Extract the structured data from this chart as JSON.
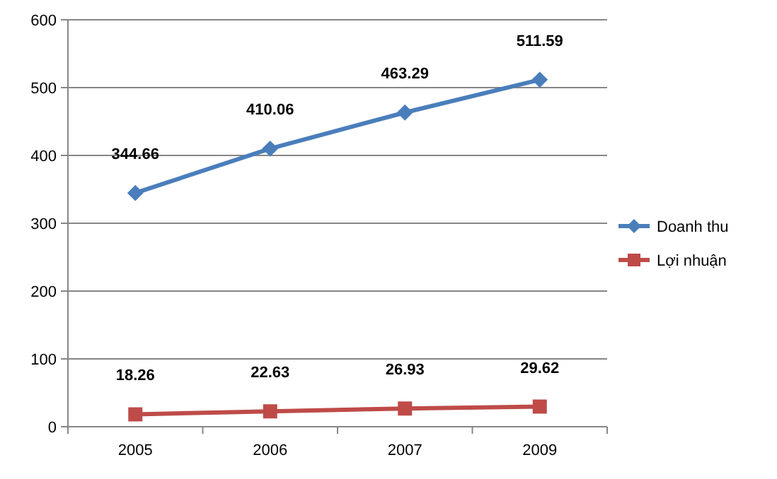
{
  "chart_data": {
    "type": "line",
    "categories": [
      "2005",
      "2006",
      "2007",
      "2009"
    ],
    "series": [
      {
        "name": "Doanh thu",
        "color": "#4a7ebb",
        "marker": "diamond",
        "values": [
          344.66,
          410.06,
          463.29,
          511.59
        ]
      },
      {
        "name": "Lợi nhuận",
        "color": "#be4b48",
        "marker": "square",
        "values": [
          18.26,
          22.63,
          26.93,
          29.62
        ]
      }
    ],
    "ylim": [
      0,
      600
    ],
    "yticks": [
      0,
      100,
      200,
      300,
      400,
      500,
      600
    ],
    "grid": "y",
    "legend": "right",
    "data_labels": true,
    "line_style": "solid"
  }
}
